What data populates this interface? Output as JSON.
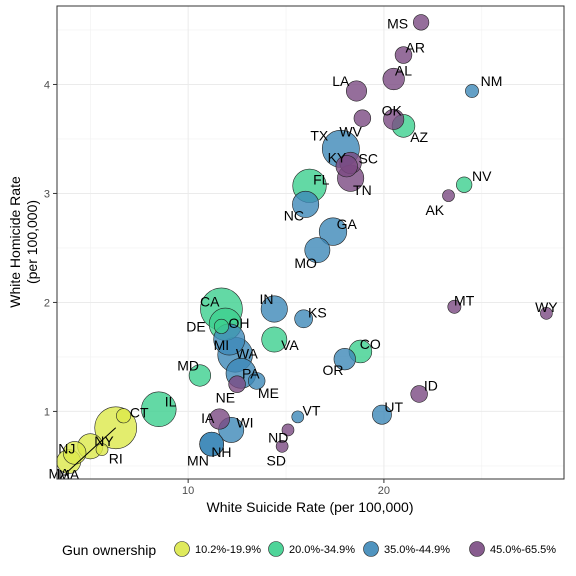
{
  "chart_data": {
    "type": "scatter",
    "xlabel": "White Suicide Rate (per 100,000)",
    "ylabel_lines": [
      "White Homicide Rate",
      "(per 100,000)"
    ],
    "xlim": [
      3.3,
      29.2
    ],
    "ylim": [
      0.38,
      4.72
    ],
    "xticks": [
      10,
      20
    ],
    "yticks": [
      1,
      2,
      3,
      4
    ],
    "grid": true,
    "legend": {
      "title": "Gun ownership",
      "position": "bottom",
      "items": [
        {
          "label": "10.2%-19.9%",
          "color": "#DCE84A"
        },
        {
          "label": "20.0%-34.9%",
          "color": "#3CCF8E"
        },
        {
          "label": "35.0%-44.9%",
          "color": "#3D88B8"
        },
        {
          "label": "45.0%-65.5%",
          "color": "#7A4A82"
        }
      ]
    },
    "points": [
      {
        "state": "MS",
        "x": 21.9,
        "y": 4.57,
        "size": 0.8,
        "group": 3,
        "label_at": [
          20.7,
          4.56
        ]
      },
      {
        "state": "AR",
        "x": 21.0,
        "y": 4.27,
        "size": 0.9,
        "group": 3,
        "label_at": [
          21.6,
          4.34
        ]
      },
      {
        "state": "AL",
        "x": 20.5,
        "y": 4.05,
        "size": 1.3,
        "group": 3,
        "label_at": [
          21.0,
          4.13
        ]
      },
      {
        "state": "LA",
        "x": 18.6,
        "y": 3.94,
        "size": 1.2,
        "group": 3,
        "label_at": [
          17.8,
          4.03
        ]
      },
      {
        "state": "NM",
        "x": 24.5,
        "y": 3.94,
        "size": 0.6,
        "group": 2,
        "label_at": [
          25.5,
          4.03
        ]
      },
      {
        "state": "OK",
        "x": 20.5,
        "y": 3.68,
        "size": 1.2,
        "group": 3,
        "label_at": [
          20.4,
          3.76
        ]
      },
      {
        "state": "AZ",
        "x": 21.0,
        "y": 3.62,
        "size": 1.4,
        "group": 1,
        "label_at": [
          21.8,
          3.52
        ]
      },
      {
        "state": "WV",
        "x": 18.9,
        "y": 3.69,
        "size": 0.9,
        "group": 3,
        "label_at": [
          18.3,
          3.57
        ]
      },
      {
        "state": "TX",
        "x": 17.8,
        "y": 3.41,
        "size": 2.6,
        "group": 2,
        "label_at": [
          16.7,
          3.53
        ]
      },
      {
        "state": "SC",
        "x": 18.3,
        "y": 3.28,
        "size": 1.3,
        "group": 3,
        "label_at": [
          19.2,
          3.32
        ]
      },
      {
        "state": "KY",
        "x": 18.1,
        "y": 3.25,
        "size": 1.3,
        "group": 3,
        "label_at": [
          17.6,
          3.33
        ]
      },
      {
        "state": "TN",
        "x": 18.3,
        "y": 3.14,
        "size": 1.7,
        "group": 3,
        "label_at": [
          18.9,
          3.03
        ]
      },
      {
        "state": "NV",
        "x": 24.1,
        "y": 3.08,
        "size": 0.8,
        "group": 1,
        "label_at": [
          25.0,
          3.16
        ]
      },
      {
        "state": "FL",
        "x": 16.2,
        "y": 3.07,
        "size": 2.3,
        "group": 1,
        "label_at": [
          16.8,
          3.13
        ]
      },
      {
        "state": "AK",
        "x": 23.3,
        "y": 2.98,
        "size": 0.5,
        "group": 3,
        "label_at": [
          22.6,
          2.85
        ]
      },
      {
        "state": "NC",
        "x": 16.0,
        "y": 2.9,
        "size": 1.7,
        "group": 2,
        "label_at": [
          15.4,
          2.8
        ]
      },
      {
        "state": "GA",
        "x": 17.4,
        "y": 2.65,
        "size": 1.8,
        "group": 2,
        "label_at": [
          18.1,
          2.72
        ]
      },
      {
        "state": "MO",
        "x": 16.6,
        "y": 2.48,
        "size": 1.6,
        "group": 2,
        "label_at": [
          16.0,
          2.36
        ]
      },
      {
        "state": "CA",
        "x": 11.7,
        "y": 1.94,
        "size": 3.0,
        "group": 1,
        "label_at": [
          11.1,
          2.01
        ]
      },
      {
        "state": "IN",
        "x": 14.4,
        "y": 1.94,
        "size": 1.7,
        "group": 2,
        "label_at": [
          14.0,
          2.03
        ]
      },
      {
        "state": "KS",
        "x": 15.9,
        "y": 1.85,
        "size": 1.0,
        "group": 2,
        "label_at": [
          16.6,
          1.91
        ]
      },
      {
        "state": "MT",
        "x": 23.6,
        "y": 1.96,
        "size": 0.6,
        "group": 3,
        "label_at": [
          24.1,
          2.02
        ]
      },
      {
        "state": "WY",
        "x": 28.3,
        "y": 1.9,
        "size": 0.5,
        "group": 3,
        "label_at": [
          28.3,
          1.96
        ]
      },
      {
        "state": "OH",
        "x": 11.9,
        "y": 1.8,
        "size": 2.2,
        "group": 1,
        "label_at": [
          12.6,
          1.81
        ]
      },
      {
        "state": "DE",
        "x": 11.7,
        "y": 1.78,
        "size": 0.7,
        "group": 1,
        "label_at": [
          10.4,
          1.78
        ]
      },
      {
        "state": "MI",
        "x": 12.1,
        "y": 1.66,
        "size": 2.1,
        "group": 2,
        "label_at": [
          11.7,
          1.61
        ]
      },
      {
        "state": "VA",
        "x": 14.4,
        "y": 1.66,
        "size": 1.6,
        "group": 1,
        "label_at": [
          15.2,
          1.61
        ]
      },
      {
        "state": "WA",
        "x": 12.4,
        "y": 1.52,
        "size": 2.4,
        "group": 2,
        "label_at": [
          13.0,
          1.53
        ]
      },
      {
        "state": "CO",
        "x": 18.8,
        "y": 1.55,
        "size": 1.4,
        "group": 1,
        "label_at": [
          19.3,
          1.62
        ]
      },
      {
        "state": "OR",
        "x": 18.0,
        "y": 1.48,
        "size": 1.3,
        "group": 2,
        "label_at": [
          17.4,
          1.38
        ]
      },
      {
        "state": "MD",
        "x": 10.6,
        "y": 1.33,
        "size": 1.3,
        "group": 1,
        "label_at": [
          10.0,
          1.42
        ]
      },
      {
        "state": "PA",
        "x": 12.7,
        "y": 1.35,
        "size": 2.0,
        "group": 2,
        "label_at": [
          13.2,
          1.35
        ]
      },
      {
        "state": "ME",
        "x": 13.5,
        "y": 1.28,
        "size": 0.9,
        "group": 2,
        "label_at": [
          14.1,
          1.17
        ]
      },
      {
        "state": "NE",
        "x": 12.5,
        "y": 1.25,
        "size": 0.9,
        "group": 3,
        "label_at": [
          11.9,
          1.13
        ]
      },
      {
        "state": "ID",
        "x": 21.8,
        "y": 1.16,
        "size": 0.9,
        "group": 3,
        "label_at": [
          22.4,
          1.24
        ]
      },
      {
        "state": "IL",
        "x": 8.5,
        "y": 1.02,
        "size": 2.4,
        "group": 1,
        "label_at": [
          9.1,
          1.09
        ]
      },
      {
        "state": "CT",
        "x": 6.7,
        "y": 0.96,
        "size": 0.7,
        "group": 0,
        "label_at": [
          7.5,
          0.99
        ]
      },
      {
        "state": "MA",
        "x": 6.3,
        "y": 0.85,
        "size": 3.0,
        "group": 0,
        "label_at": [
          3.9,
          0.42
        ]
      },
      {
        "state": "VT",
        "x": 15.6,
        "y": 0.95,
        "size": 0.5,
        "group": 2,
        "label_at": [
          16.3,
          1.01
        ]
      },
      {
        "state": "UT",
        "x": 19.9,
        "y": 0.97,
        "size": 1.1,
        "group": 2,
        "label_at": [
          20.5,
          1.04
        ]
      },
      {
        "state": "IA",
        "x": 11.6,
        "y": 0.93,
        "size": 1.2,
        "group": 3,
        "label_at": [
          11.0,
          0.94
        ]
      },
      {
        "state": "WI",
        "x": 12.2,
        "y": 0.83,
        "size": 1.6,
        "group": 2,
        "label_at": [
          12.9,
          0.9
        ]
      },
      {
        "state": "ND",
        "x": 15.1,
        "y": 0.83,
        "size": 0.5,
        "group": 3,
        "label_at": [
          14.6,
          0.76
        ]
      },
      {
        "state": "NH",
        "x": 11.2,
        "y": 0.7,
        "size": 1.5,
        "group": 2,
        "label_at": [
          11.7,
          0.63
        ]
      },
      {
        "state": "MN",
        "x": 11.2,
        "y": 0.7,
        "size": 1.5,
        "group": 2,
        "label_at": [
          10.5,
          0.55
        ]
      },
      {
        "state": "SD",
        "x": 14.8,
        "y": 0.68,
        "size": 0.5,
        "group": 3,
        "label_at": [
          14.5,
          0.55
        ]
      },
      {
        "state": "NY",
        "x": 5.0,
        "y": 0.68,
        "size": 1.6,
        "group": 0,
        "label_at": [
          5.7,
          0.73
        ]
      },
      {
        "state": "NJ",
        "x": 4.2,
        "y": 0.62,
        "size": 1.4,
        "group": 0,
        "label_at": [
          3.8,
          0.66
        ]
      },
      {
        "state": "RI",
        "x": 5.6,
        "y": 0.65,
        "size": 0.5,
        "group": 0,
        "label_at": [
          6.3,
          0.57
        ]
      },
      {
        "state": "MA",
        "x": 3.9,
        "y": 0.54,
        "size": 1.5,
        "group": 0,
        "label_at": [
          3.4,
          0.43
        ]
      }
    ]
  }
}
